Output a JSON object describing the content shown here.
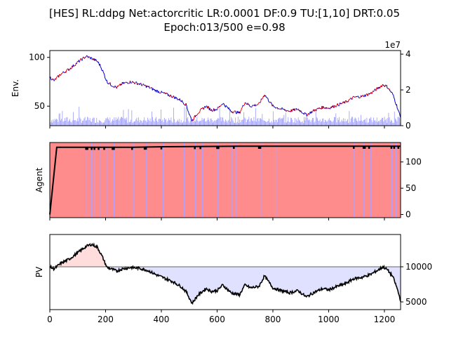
{
  "title_line1": "[HES] RL:ddpg Net:actorcritic LR:0.0001 DF:0.9 TU:[1,10] DRT:0.05",
  "title_line2": "Epoch:013/500 e=0.98",
  "colors": {
    "price_up": "#ff0000",
    "price_down": "#0000cc",
    "volume": "#9999ff",
    "agent_bg": "#ff8c8c",
    "agent_stripe": "#b0a0ff",
    "agent_line": "#000000",
    "pv_line": "#000000",
    "pv_gain_fill": "#ffdddd",
    "pv_loss_fill": "#e0e0ff",
    "baseline": "#808080"
  },
  "chart_data": [
    {
      "type": "line",
      "name": "env",
      "ylabel": "Env.",
      "xlim": [
        0,
        1258
      ],
      "ylim": [
        30,
        107
      ],
      "y_ticks": [
        "50",
        "100"
      ],
      "y_tick_values": [
        50,
        100
      ],
      "right_axis": {
        "ylim": [
          0,
          4.2
        ],
        "ticks": [
          "0",
          "2",
          "4"
        ],
        "tick_values": [
          0,
          2,
          4
        ],
        "offset_label": "1e7"
      },
      "price_keypoints": {
        "x": [
          0,
          15,
          40,
          70,
          100,
          130,
          150,
          170,
          180,
          190,
          205,
          220,
          240,
          260,
          290,
          320,
          350,
          380,
          410,
          440,
          470,
          490,
          500,
          510,
          530,
          560,
          580,
          600,
          620,
          650,
          680,
          700,
          720,
          750,
          770,
          800,
          830,
          860,
          890,
          920,
          950,
          980,
          1000,
          1030,
          1060,
          1090,
          1120,
          1150,
          1180,
          1195,
          1210,
          1230,
          1245,
          1258
        ],
        "y": [
          80,
          76,
          83,
          88,
          95,
          101,
          99,
          96,
          92,
          86,
          75,
          72,
          69,
          73,
          75,
          73,
          70,
          66,
          63,
          60,
          56,
          51,
          42,
          35,
          43,
          50,
          46,
          47,
          53,
          45,
          43,
          54,
          50,
          52,
          62,
          50,
          47,
          45,
          47,
          41,
          46,
          49,
          48,
          51,
          54,
          59,
          60,
          63,
          69,
          72,
          70,
          62,
          50,
          38
        ]
      },
      "volume_note": "bars up to ~1.0e7 (right axis)"
    },
    {
      "type": "line",
      "name": "agent",
      "ylabel": "Agent",
      "xlim": [
        0,
        1258
      ],
      "ylim": [
        -6,
        137
      ],
      "y_ticks": [
        "0",
        "50",
        "100"
      ],
      "y_tick_values": [
        0,
        50,
        100
      ],
      "x": [
        0,
        25,
        300,
        410,
        680,
        1258
      ],
      "y": [
        0,
        128,
        128,
        129,
        130,
        130
      ],
      "dips_x": [
        130,
        135,
        150,
        160,
        175,
        195,
        225,
        230,
        295,
        340,
        345,
        400,
        520,
        540,
        600,
        605,
        660,
        750,
        755,
        1090,
        1125,
        1130,
        1145,
        1225,
        1235,
        1250
      ],
      "stripe_x": [
        130,
        148,
        160,
        180,
        205,
        228,
        300,
        345,
        405,
        480,
        520,
        545,
        600,
        650,
        665,
        755,
        810,
        1090,
        1125,
        1150,
        1225,
        1240
      ]
    },
    {
      "type": "area",
      "name": "pv",
      "ylabel": "PV",
      "xlim": [
        0,
        1258
      ],
      "ylim": [
        3900,
        14600
      ],
      "baseline": 10000,
      "y_ticks": [
        "5000",
        "10000"
      ],
      "y_tick_values": [
        5000,
        10000
      ],
      "x_ticks": [
        "0",
        "200",
        "400",
        "600",
        "800",
        "1000",
        "1200"
      ],
      "x_tick_values": [
        0,
        200,
        400,
        600,
        800,
        1000,
        1200
      ],
      "x": [
        0,
        15,
        40,
        70,
        100,
        130,
        150,
        170,
        180,
        190,
        205,
        220,
        240,
        260,
        290,
        320,
        350,
        380,
        410,
        440,
        470,
        490,
        500,
        510,
        530,
        560,
        580,
        600,
        620,
        650,
        680,
        700,
        720,
        750,
        770,
        800,
        830,
        860,
        890,
        920,
        950,
        980,
        1000,
        1030,
        1060,
        1090,
        1120,
        1150,
        1180,
        1195,
        1210,
        1230,
        1245,
        1258
      ],
      "y": [
        10000,
        9700,
        10500,
        11100,
        12000,
        12900,
        13200,
        12800,
        12100,
        11300,
        9900,
        9700,
        9400,
        9700,
        9900,
        9800,
        9500,
        8900,
        8400,
        7900,
        7200,
        6400,
        5600,
        4800,
        5900,
        6900,
        6500,
        6600,
        7400,
        6300,
        6000,
        7400,
        7000,
        7200,
        8700,
        7000,
        6600,
        6300,
        6600,
        5700,
        6400,
        6900,
        6700,
        7200,
        7600,
        8300,
        8500,
        8900,
        9600,
        10000,
        9600,
        8600,
        7000,
        5200
      ]
    }
  ]
}
